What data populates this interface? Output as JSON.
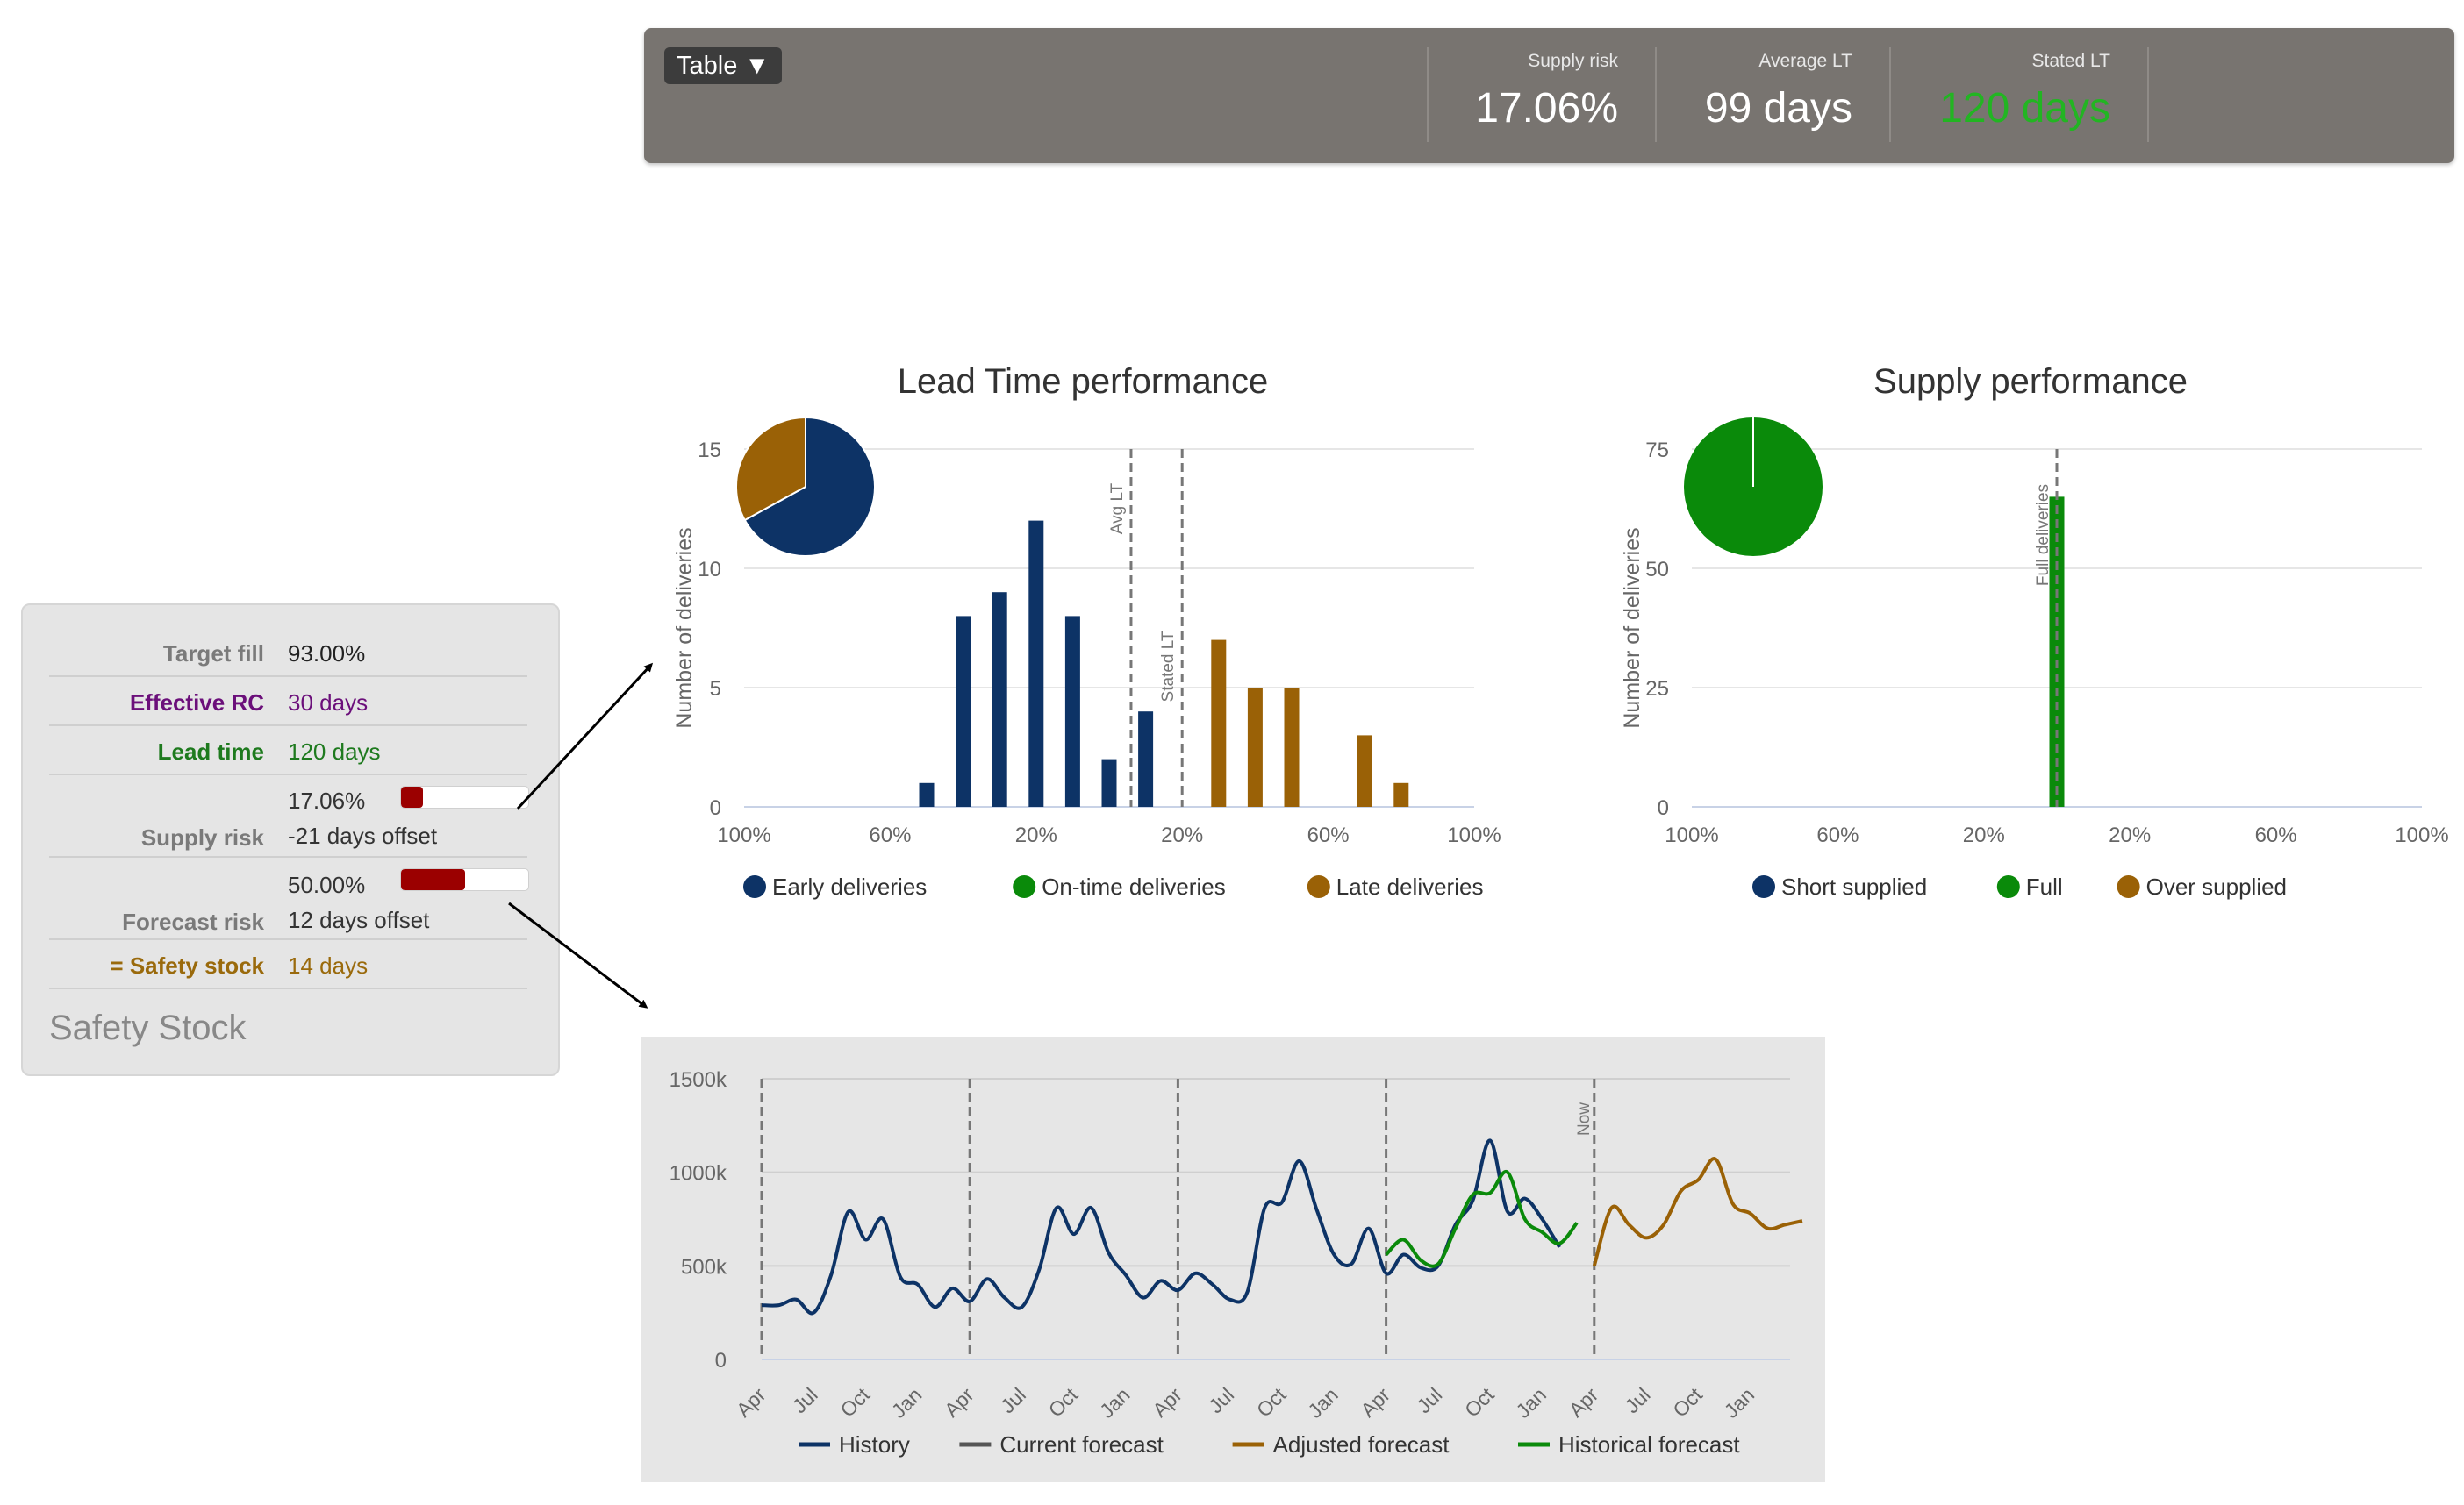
{
  "topbar": {
    "table_button": "Table ▼",
    "kpis": [
      {
        "label": "Supply risk",
        "value": "17.06%",
        "color": "#ffffff"
      },
      {
        "label": "Average LT",
        "value": "99 days",
        "color": "#ffffff"
      },
      {
        "label": "Stated LT",
        "value": "120 days",
        "color": "#22b522"
      }
    ]
  },
  "safety_panel": {
    "title": "Safety Stock",
    "rows": [
      {
        "label": "Target fill",
        "value": "93.00%",
        "label_color": "#7a7a7a",
        "value_color": "#222222"
      },
      {
        "label": "Effective RC",
        "value": "30 days",
        "label_color": "#6b0f7a",
        "value_color": "#6b0f7a"
      },
      {
        "label": "Lead time",
        "value": "120 days",
        "label_color": "#1e7a1e",
        "value_color": "#1e7a1e"
      }
    ],
    "supply_risk": {
      "label": "Supply risk",
      "percent": "17.06%",
      "offset": "-21 days offset",
      "fill": 0.17
    },
    "forecast_risk": {
      "label": "Forecast risk",
      "percent": "50.00%",
      "offset": "12 days offset",
      "fill": 0.5
    },
    "safety_stock": {
      "label": "= Safety stock",
      "value": "14 days",
      "color": "#9a6a0c"
    }
  },
  "chart_data": [
    {
      "type": "bar",
      "title": "Lead Time performance",
      "ylabel": "Number of deliveries",
      "ylim": [
        0,
        15
      ],
      "yticks": [
        "0",
        "5",
        "10",
        "15"
      ],
      "xticks": [
        "100%",
        "60%",
        "20%",
        "20%",
        "60%",
        "100%"
      ],
      "x_domain": [
        -100,
        100
      ],
      "series": [
        {
          "name": "Early deliveries",
          "color": "#0d3366",
          "x": [
            -50,
            -40,
            -30,
            -20,
            -10,
            0,
            10
          ],
          "values": [
            1,
            8,
            9,
            12,
            8,
            2,
            4
          ]
        },
        {
          "name": "On-time deliveries",
          "color": "#0a8a0a",
          "x": [],
          "values": []
        },
        {
          "name": "Late deliveries",
          "color": "#9a6106",
          "x": [
            30,
            40,
            50,
            70,
            80
          ],
          "values": [
            7,
            5,
            5,
            3,
            1
          ]
        }
      ],
      "reference_lines": [
        {
          "label": "Avg LT",
          "x": 6
        },
        {
          "label": "Stated LT",
          "x": 20
        }
      ],
      "pie": [
        {
          "name": "Early deliveries",
          "value": 67,
          "color": "#0d3366"
        },
        {
          "name": "Late deliveries",
          "value": 33,
          "color": "#9a6106"
        }
      ]
    },
    {
      "type": "bar",
      "title": "Supply performance",
      "ylabel": "Number of deliveries",
      "ylim": [
        0,
        75
      ],
      "yticks": [
        "0",
        "25",
        "50",
        "75"
      ],
      "xticks": [
        "100%",
        "60%",
        "20%",
        "20%",
        "60%",
        "100%"
      ],
      "x_domain": [
        -100,
        100
      ],
      "series": [
        {
          "name": "Short supplied",
          "color": "#0d3366",
          "x": [],
          "values": []
        },
        {
          "name": "Full",
          "color": "#0a8a0a",
          "x": [
            0
          ],
          "values": [
            65
          ]
        },
        {
          "name": "Over supplied",
          "color": "#9a6106",
          "x": [],
          "values": []
        }
      ],
      "reference_lines": [
        {
          "label": "Full deliveries",
          "x": 0
        }
      ],
      "pie": [
        {
          "name": "Full",
          "value": 100,
          "color": "#0a8a0a"
        }
      ]
    },
    {
      "type": "line",
      "ylim": [
        0,
        1500000
      ],
      "yticks": [
        "0",
        "500k",
        "1000k",
        "1500k"
      ],
      "xticks": [
        "Apr",
        "Jul",
        "Oct",
        "Jan",
        "Apr",
        "Jul",
        "Oct",
        "Jan",
        "Apr",
        "Jul",
        "Oct",
        "Jan",
        "Apr",
        "Jul",
        "Oct",
        "Jan",
        "Apr",
        "Jul",
        "Oct",
        "Jan"
      ],
      "reference_lines": [
        {
          "label": "Now",
          "x": 48
        }
      ],
      "series": [
        {
          "name": "History",
          "color": "#0d3366",
          "x": [
            0,
            1,
            2,
            3,
            4,
            5,
            6,
            7,
            8,
            9,
            10,
            11,
            12,
            13,
            14,
            15,
            16,
            17,
            18,
            19,
            20,
            21,
            22,
            23,
            24,
            25,
            26,
            27,
            28,
            29,
            30,
            31,
            32,
            33,
            34,
            35,
            36,
            37,
            38,
            39,
            40,
            41,
            42,
            43,
            44,
            45,
            46,
            47,
            48
          ],
          "values": [
            290000,
            290000,
            320000,
            250000,
            450000,
            790000,
            640000,
            750000,
            440000,
            400000,
            280000,
            380000,
            310000,
            430000,
            330000,
            280000,
            480000,
            810000,
            670000,
            810000,
            570000,
            450000,
            330000,
            420000,
            370000,
            460000,
            400000,
            320000,
            360000,
            810000,
            840000,
            1060000,
            800000,
            560000,
            510000,
            700000,
            460000,
            560000,
            490000,
            500000,
            720000,
            850000,
            1170000,
            790000,
            860000,
            750000,
            600000,
            null,
            null
          ]
        },
        {
          "name": "Current forecast",
          "color": "#555555",
          "x": [],
          "values": []
        },
        {
          "name": "Adjusted forecast",
          "color": "#9a6106",
          "x": [
            48,
            49,
            50,
            51,
            52,
            53,
            54,
            55,
            56,
            57,
            58,
            59,
            60
          ],
          "values": [
            500000,
            810000,
            720000,
            650000,
            720000,
            900000,
            960000,
            1070000,
            830000,
            780000,
            700000,
            720000,
            740000
          ]
        },
        {
          "name": "Historical forecast",
          "color": "#0a8a0a",
          "x": [
            36,
            37,
            38,
            39,
            40,
            41,
            42,
            43,
            44,
            45,
            46,
            47
          ],
          "values": [
            560000,
            640000,
            530000,
            510000,
            700000,
            880000,
            890000,
            1000000,
            750000,
            680000,
            620000,
            730000
          ]
        }
      ]
    }
  ]
}
